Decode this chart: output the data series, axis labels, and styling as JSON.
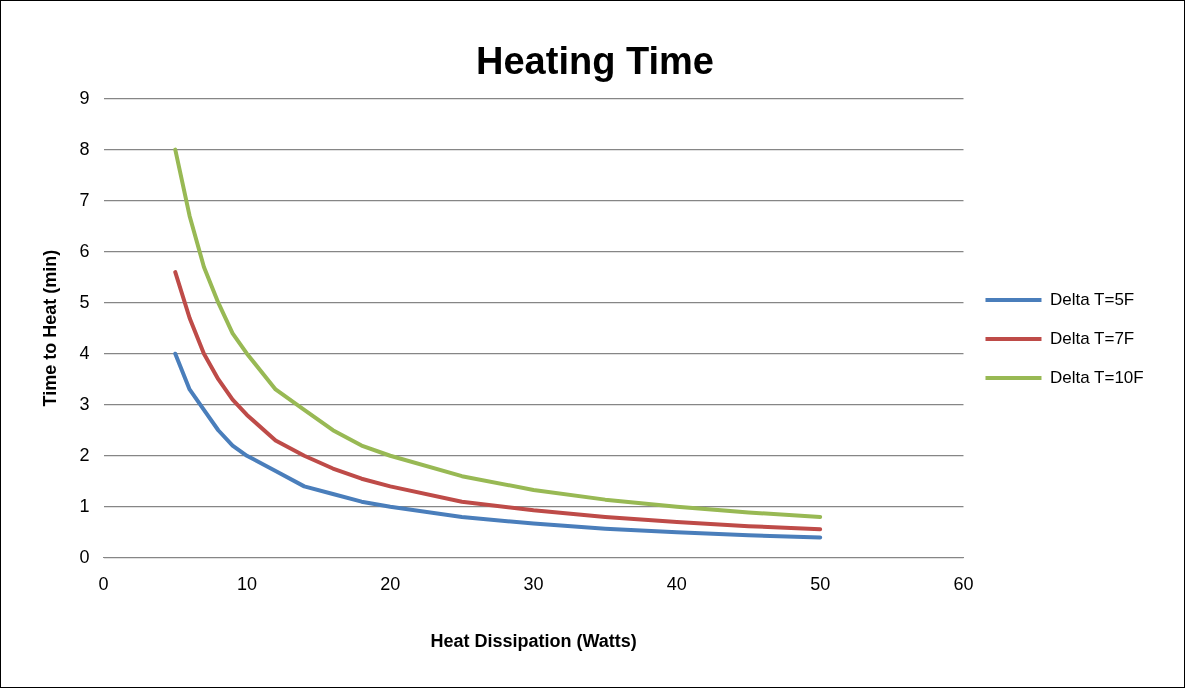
{
  "chart_data": {
    "type": "line",
    "title": "Heating Time",
    "xlabel": "Heat Dissipation (Watts)",
    "ylabel": "Time to Heat (min)",
    "x": [
      5,
      6,
      7,
      8,
      9,
      10,
      12,
      14,
      16,
      18,
      20,
      25,
      30,
      35,
      40,
      45,
      50
    ],
    "series": [
      {
        "name": "Delta T=5F",
        "color": "#4a7ebb",
        "values": [
          4.0,
          3.3,
          2.9,
          2.5,
          2.2,
          2.0,
          1.7,
          1.4,
          1.25,
          1.1,
          1.0,
          0.8,
          0.67,
          0.57,
          0.5,
          0.44,
          0.4
        ]
      },
      {
        "name": "Delta T=7F",
        "color": "#be4b48",
        "values": [
          5.6,
          4.7,
          4.0,
          3.5,
          3.1,
          2.8,
          2.3,
          2.0,
          1.75,
          1.55,
          1.4,
          1.1,
          0.93,
          0.8,
          0.7,
          0.62,
          0.56
        ]
      },
      {
        "name": "Delta T=10F",
        "color": "#98b954",
        "values": [
          8.0,
          6.7,
          5.7,
          5.0,
          4.4,
          4.0,
          3.3,
          2.9,
          2.5,
          2.2,
          2.0,
          1.6,
          1.33,
          1.14,
          1.0,
          0.89,
          0.8
        ]
      }
    ],
    "xlim": [
      0,
      60
    ],
    "xticks": [
      0,
      10,
      20,
      30,
      40,
      50,
      60
    ],
    "ylim": [
      0,
      9
    ],
    "yticks": [
      0,
      1,
      2,
      3,
      4,
      5,
      6,
      7,
      8,
      9
    ],
    "grid": "y",
    "legend": "right",
    "marker": "none",
    "line_style": "solid"
  }
}
